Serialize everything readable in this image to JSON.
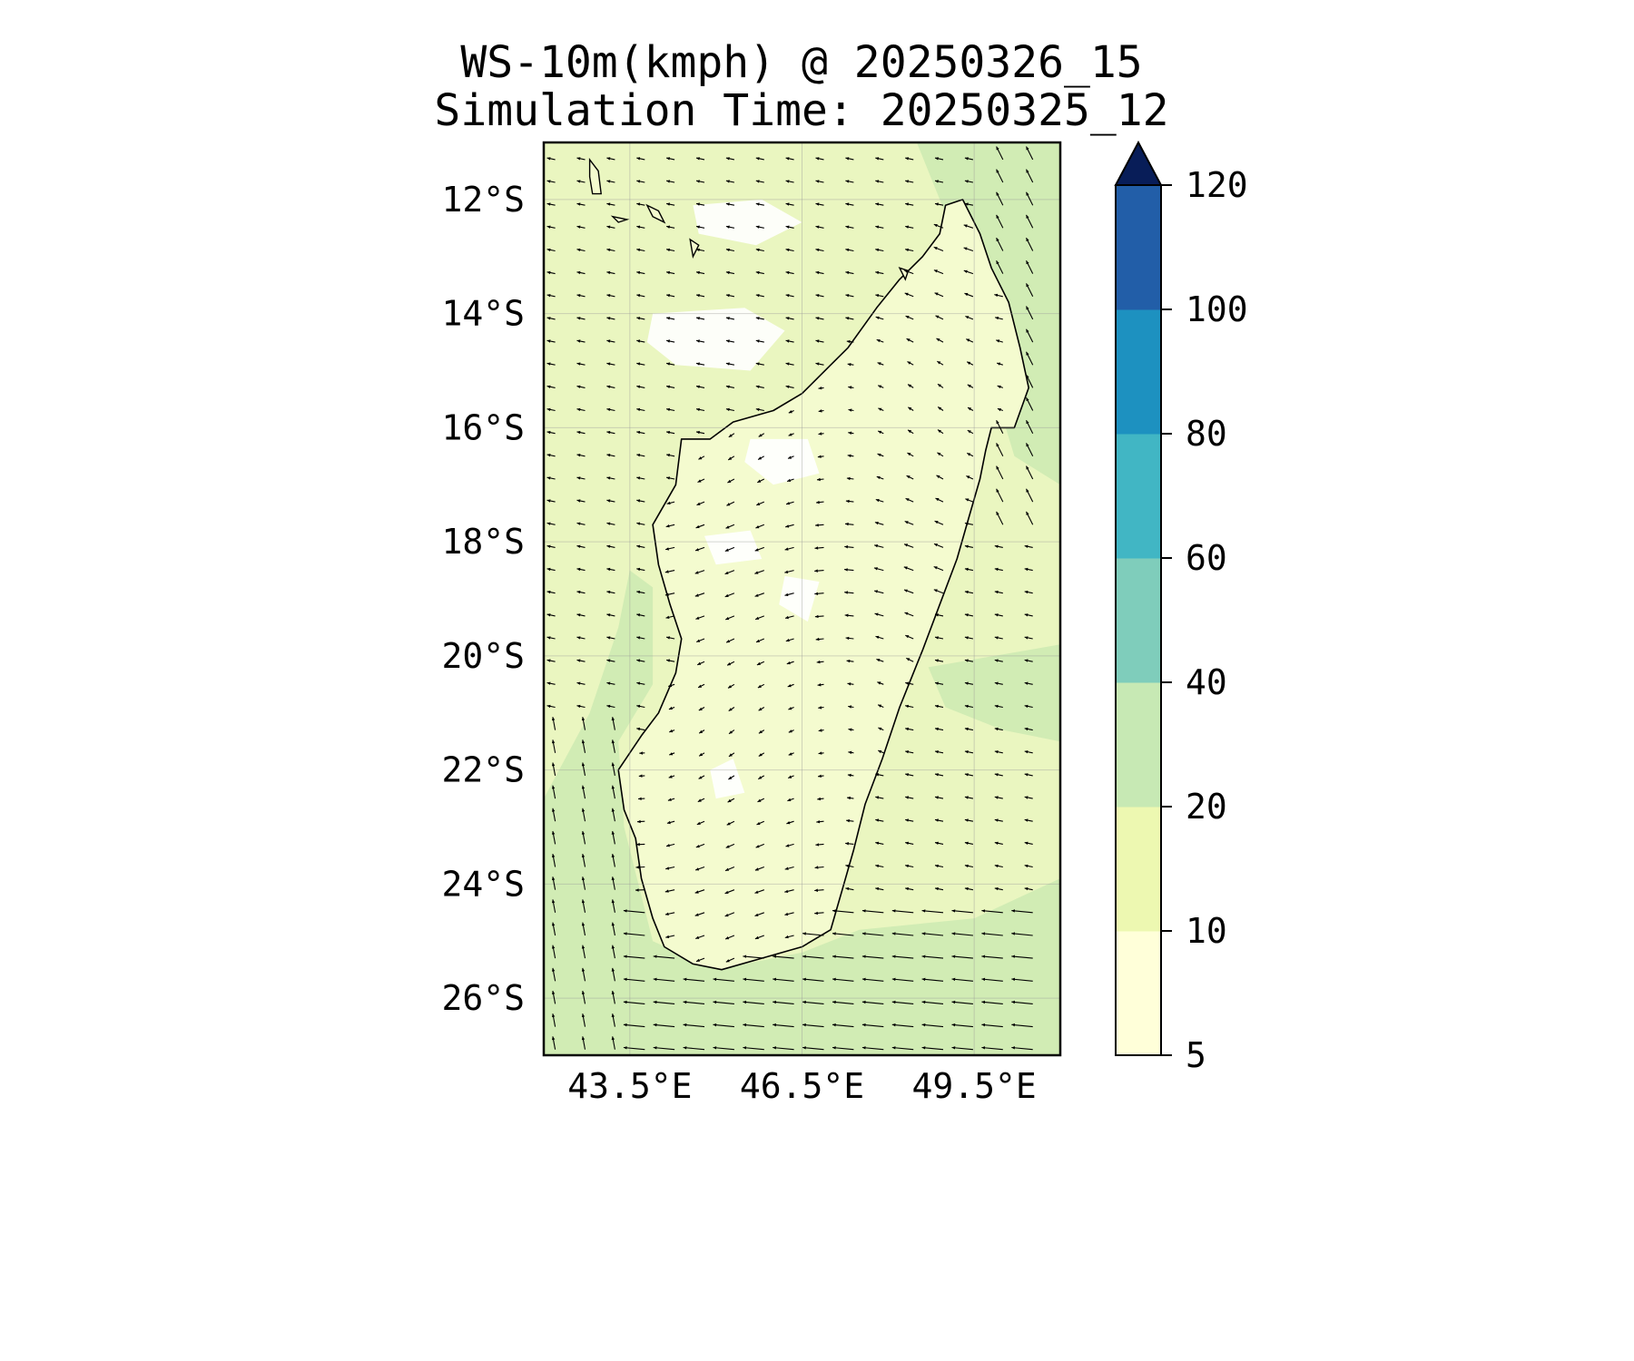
{
  "title": {
    "line1": "WS-10m(kmph) @ 20250326_15",
    "line2": "Simulation Time: 20250325_12"
  },
  "map": {
    "extent": {
      "lon_min": 42.0,
      "lon_max": 51.0,
      "lat_min": -27.0,
      "lat_max": -11.0
    },
    "lat_ticks": [
      {
        "value": -12,
        "label": "12°S"
      },
      {
        "value": -14,
        "label": "14°S"
      },
      {
        "value": -16,
        "label": "16°S"
      },
      {
        "value": -18,
        "label": "18°S"
      },
      {
        "value": -20,
        "label": "20°S"
      },
      {
        "value": -22,
        "label": "22°S"
      },
      {
        "value": -24,
        "label": "24°S"
      },
      {
        "value": -26,
        "label": "26°S"
      }
    ],
    "lon_ticks": [
      {
        "value": 43.5,
        "label": "43.5°E"
      },
      {
        "value": 46.5,
        "label": "46.5°E"
      },
      {
        "value": 49.5,
        "label": "49.5°E"
      }
    ],
    "gridlines": true,
    "ocean_fill": "#eaf6c0",
    "land_fill": "#f4fbcf",
    "calm_fill": "#ffffff",
    "wind_band_fill": "#d1ecb4",
    "coast_color": "#000000",
    "arrow_color": "#000000",
    "coastline": [
      [
        49.3,
        -12.0
      ],
      [
        49.6,
        -12.6
      ],
      [
        49.8,
        -13.2
      ],
      [
        50.1,
        -13.8
      ],
      [
        50.3,
        -14.6
      ],
      [
        50.45,
        -15.3
      ],
      [
        50.2,
        -16.0
      ],
      [
        49.8,
        -16.0
      ],
      [
        49.7,
        -16.4
      ],
      [
        49.6,
        -16.9
      ],
      [
        49.4,
        -17.6
      ],
      [
        49.2,
        -18.3
      ],
      [
        48.9,
        -19.1
      ],
      [
        48.6,
        -19.9
      ],
      [
        48.2,
        -20.9
      ],
      [
        47.9,
        -21.8
      ],
      [
        47.6,
        -22.6
      ],
      [
        47.4,
        -23.4
      ],
      [
        47.2,
        -24.1
      ],
      [
        47.0,
        -24.8
      ],
      [
        46.5,
        -25.1
      ],
      [
        45.8,
        -25.3
      ],
      [
        45.1,
        -25.5
      ],
      [
        44.6,
        -25.4
      ],
      [
        44.1,
        -25.1
      ],
      [
        43.9,
        -24.6
      ],
      [
        43.7,
        -23.9
      ],
      [
        43.6,
        -23.2
      ],
      [
        43.4,
        -22.7
      ],
      [
        43.3,
        -22.0
      ],
      [
        43.7,
        -21.4
      ],
      [
        44.0,
        -21.0
      ],
      [
        44.3,
        -20.3
      ],
      [
        44.4,
        -19.7
      ],
      [
        44.2,
        -19.1
      ],
      [
        44.0,
        -18.4
      ],
      [
        43.9,
        -17.7
      ],
      [
        44.3,
        -17.0
      ],
      [
        44.4,
        -16.2
      ],
      [
        44.9,
        -16.2
      ],
      [
        45.3,
        -15.9
      ],
      [
        46.0,
        -15.7
      ],
      [
        46.5,
        -15.4
      ],
      [
        47.0,
        -14.9
      ],
      [
        47.3,
        -14.6
      ],
      [
        47.8,
        -13.9
      ],
      [
        48.2,
        -13.4
      ],
      [
        48.6,
        -13.0
      ],
      [
        48.9,
        -12.6
      ],
      [
        49.0,
        -12.1
      ],
      [
        49.3,
        -12.0
      ]
    ],
    "islands": [
      [
        [
          42.8,
          -11.3
        ],
        [
          42.95,
          -11.5
        ],
        [
          43.0,
          -11.9
        ],
        [
          42.85,
          -11.9
        ],
        [
          42.8,
          -11.6
        ],
        [
          42.8,
          -11.3
        ]
      ],
      [
        [
          43.2,
          -12.3
        ],
        [
          43.45,
          -12.35
        ],
        [
          43.3,
          -12.4
        ],
        [
          43.2,
          -12.3
        ]
      ],
      [
        [
          43.8,
          -12.1
        ],
        [
          44.0,
          -12.2
        ],
        [
          44.1,
          -12.4
        ],
        [
          43.9,
          -12.3
        ],
        [
          43.8,
          -12.1
        ]
      ],
      [
        [
          44.55,
          -12.7
        ],
        [
          44.7,
          -12.8
        ],
        [
          44.6,
          -13.0
        ],
        [
          44.55,
          -12.7
        ]
      ],
      [
        [
          48.2,
          -13.2
        ],
        [
          48.35,
          -13.25
        ],
        [
          48.3,
          -13.4
        ],
        [
          48.2,
          -13.2
        ]
      ]
    ]
  },
  "colorbar": {
    "levels": [
      5,
      10,
      20,
      40,
      60,
      80,
      100,
      120
    ],
    "labels": [
      "5",
      "10",
      "20",
      "40",
      "60",
      "80",
      "100",
      "120"
    ],
    "colors": [
      "#ffffd9",
      "#edf8b1",
      "#c7e9b4",
      "#7fcdbb",
      "#41b6c4",
      "#1d91c0",
      "#225ea8",
      "#253494"
    ],
    "extend_color": "#081d58",
    "extend": "max"
  }
}
